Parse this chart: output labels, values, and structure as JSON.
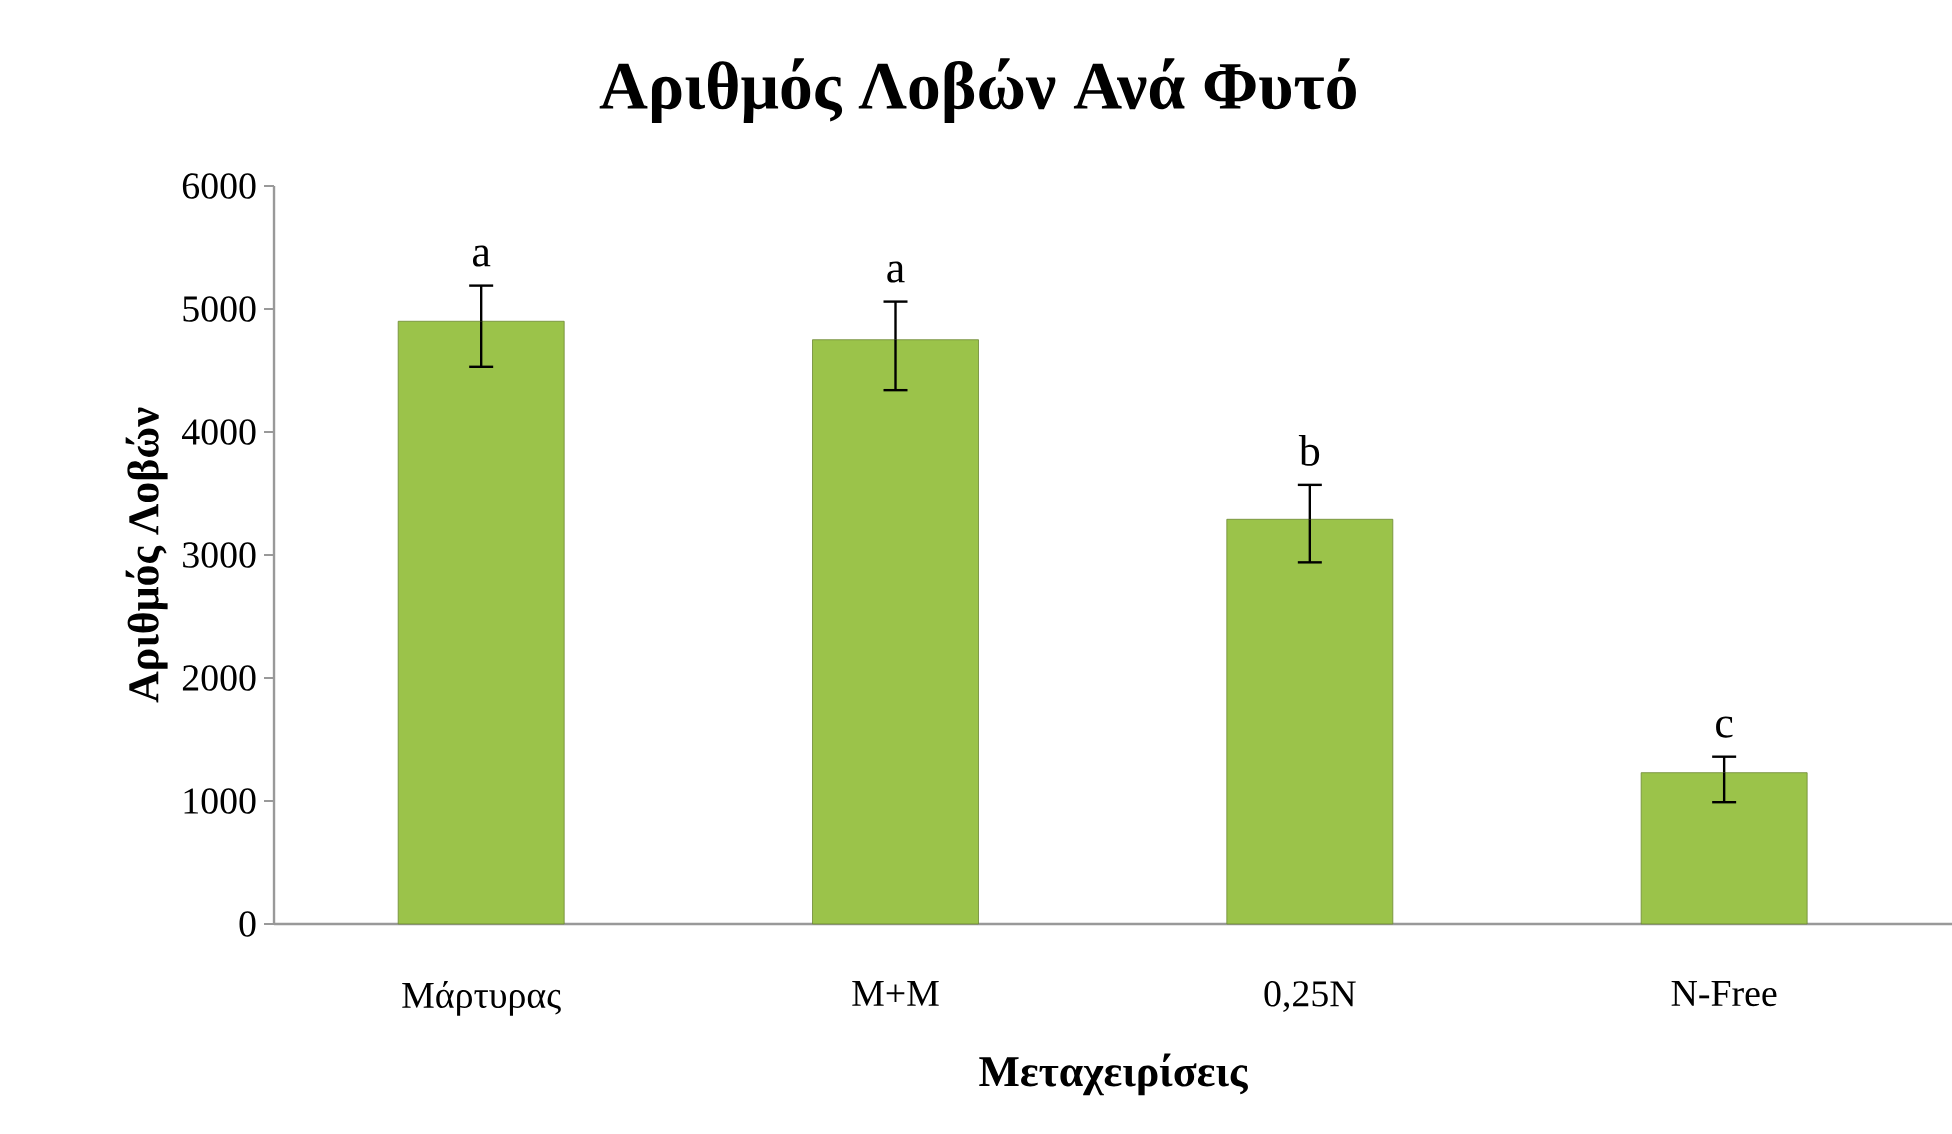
{
  "chart_data": {
    "type": "bar",
    "title": "Αριθμός Λοβών Ανά Φυτό",
    "xlabel": "Μεταχειρίσεις",
    "ylabel": "Αριθμός Λοβών",
    "categories": [
      "Μάρτυρας",
      "Μ+Μ",
      "0,25Ν",
      "N-Free"
    ],
    "values": [
      4900,
      4750,
      3290,
      1230
    ],
    "errors": [
      [
        4530,
        5190
      ],
      [
        4340,
        5060
      ],
      [
        2940,
        3570
      ],
      [
        990,
        1360
      ]
    ],
    "color": "#9bc34a",
    "ylim": [
      0,
      6000
    ],
    "yticks": [
      0,
      1000,
      2000,
      3000,
      4000,
      5000,
      6000
    ],
    "grid": false,
    "annotations": [
      "a",
      "a",
      "b",
      "c"
    ]
  }
}
